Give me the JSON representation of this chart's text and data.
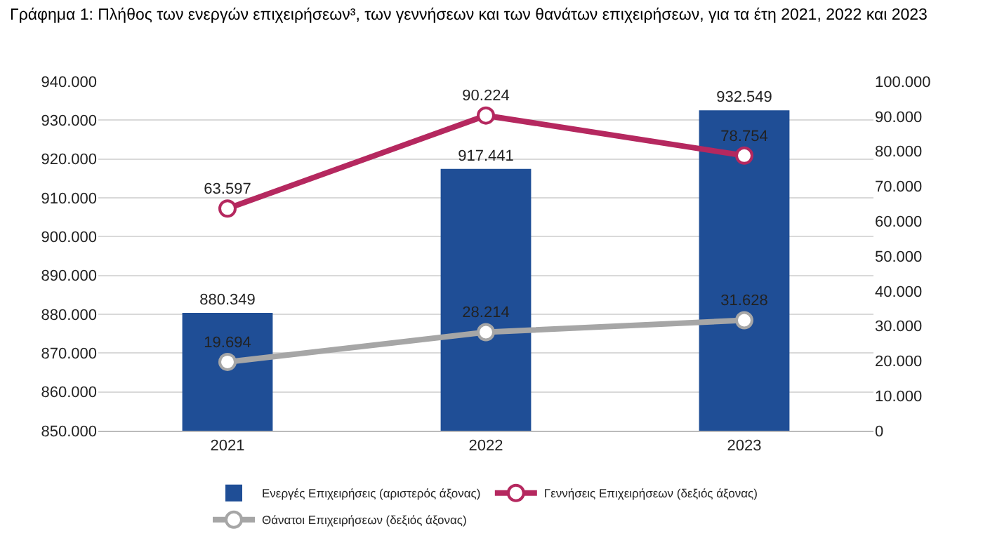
{
  "chart_data": {
    "type": "bar",
    "title": "Γράφημα 1: Πλήθος των ενεργών επιχειρήσεων³, των γεννήσεων και των θανάτων επιχειρήσεων, για τα έτη 2021, 2022 και 2023",
    "categories": [
      "2021",
      "2022",
      "2023"
    ],
    "series": [
      {
        "name": "Ενεργές Επιχειρήσεις (αριστερός άξονας)",
        "color": "#1f4e96",
        "values": [
          880349,
          917441,
          932549
        ],
        "value_labels": [
          "880.349",
          "917.441",
          "932.549"
        ]
      },
      {
        "name": "Γεννήσεις Επιχειρήσεων (δεξιός άξονας)",
        "type": "line",
        "axis": "y2",
        "color": "#b5285f",
        "values": [
          63597,
          90224,
          78754
        ],
        "value_labels": [
          "63.597",
          "90.224",
          "78.754"
        ]
      },
      {
        "name": "Θάνατοι Επιχειρήσεων (δεξιός άξονας)",
        "type": "line",
        "axis": "y2",
        "color": "#a6a6a6",
        "values": [
          19694,
          28214,
          31628
        ],
        "value_labels": [
          "19.694",
          "28.214",
          "31.628"
        ]
      }
    ],
    "ylim": [
      850000,
      940000
    ],
    "yticks": [
      {
        "value": 850000,
        "label": "850.000"
      },
      {
        "value": 860000,
        "label": "860.000"
      },
      {
        "value": 870000,
        "label": "870.000"
      },
      {
        "value": 880000,
        "label": "880.000"
      },
      {
        "value": 890000,
        "label": "890.000"
      },
      {
        "value": 900000,
        "label": "900.000"
      },
      {
        "value": 910000,
        "label": "910.000"
      },
      {
        "value": 920000,
        "label": "920.000"
      },
      {
        "value": 930000,
        "label": "930.000"
      },
      {
        "value": 940000,
        "label": "940.000"
      }
    ],
    "y2lim": [
      0,
      100000
    ],
    "y2ticks": [
      0,
      {
        "value": 10000,
        "label": "10.000"
      },
      {
        "value": 20000,
        "label": "20.000"
      },
      {
        "value": 30000,
        "label": "30.000"
      },
      {
        "value": 40000,
        "label": "40.000"
      },
      {
        "value": 50000,
        "label": "50.000"
      },
      {
        "value": 60000,
        "label": "60.000"
      },
      {
        "value": 70000,
        "label": "70.000"
      },
      {
        "value": 80000,
        "label": "80.000"
      },
      {
        "value": 90000,
        "label": "90.000"
      },
      {
        "value": 100000,
        "label": "100.000"
      }
    ],
    "grid": "y",
    "legend": "bottom",
    "marker": "circle"
  }
}
